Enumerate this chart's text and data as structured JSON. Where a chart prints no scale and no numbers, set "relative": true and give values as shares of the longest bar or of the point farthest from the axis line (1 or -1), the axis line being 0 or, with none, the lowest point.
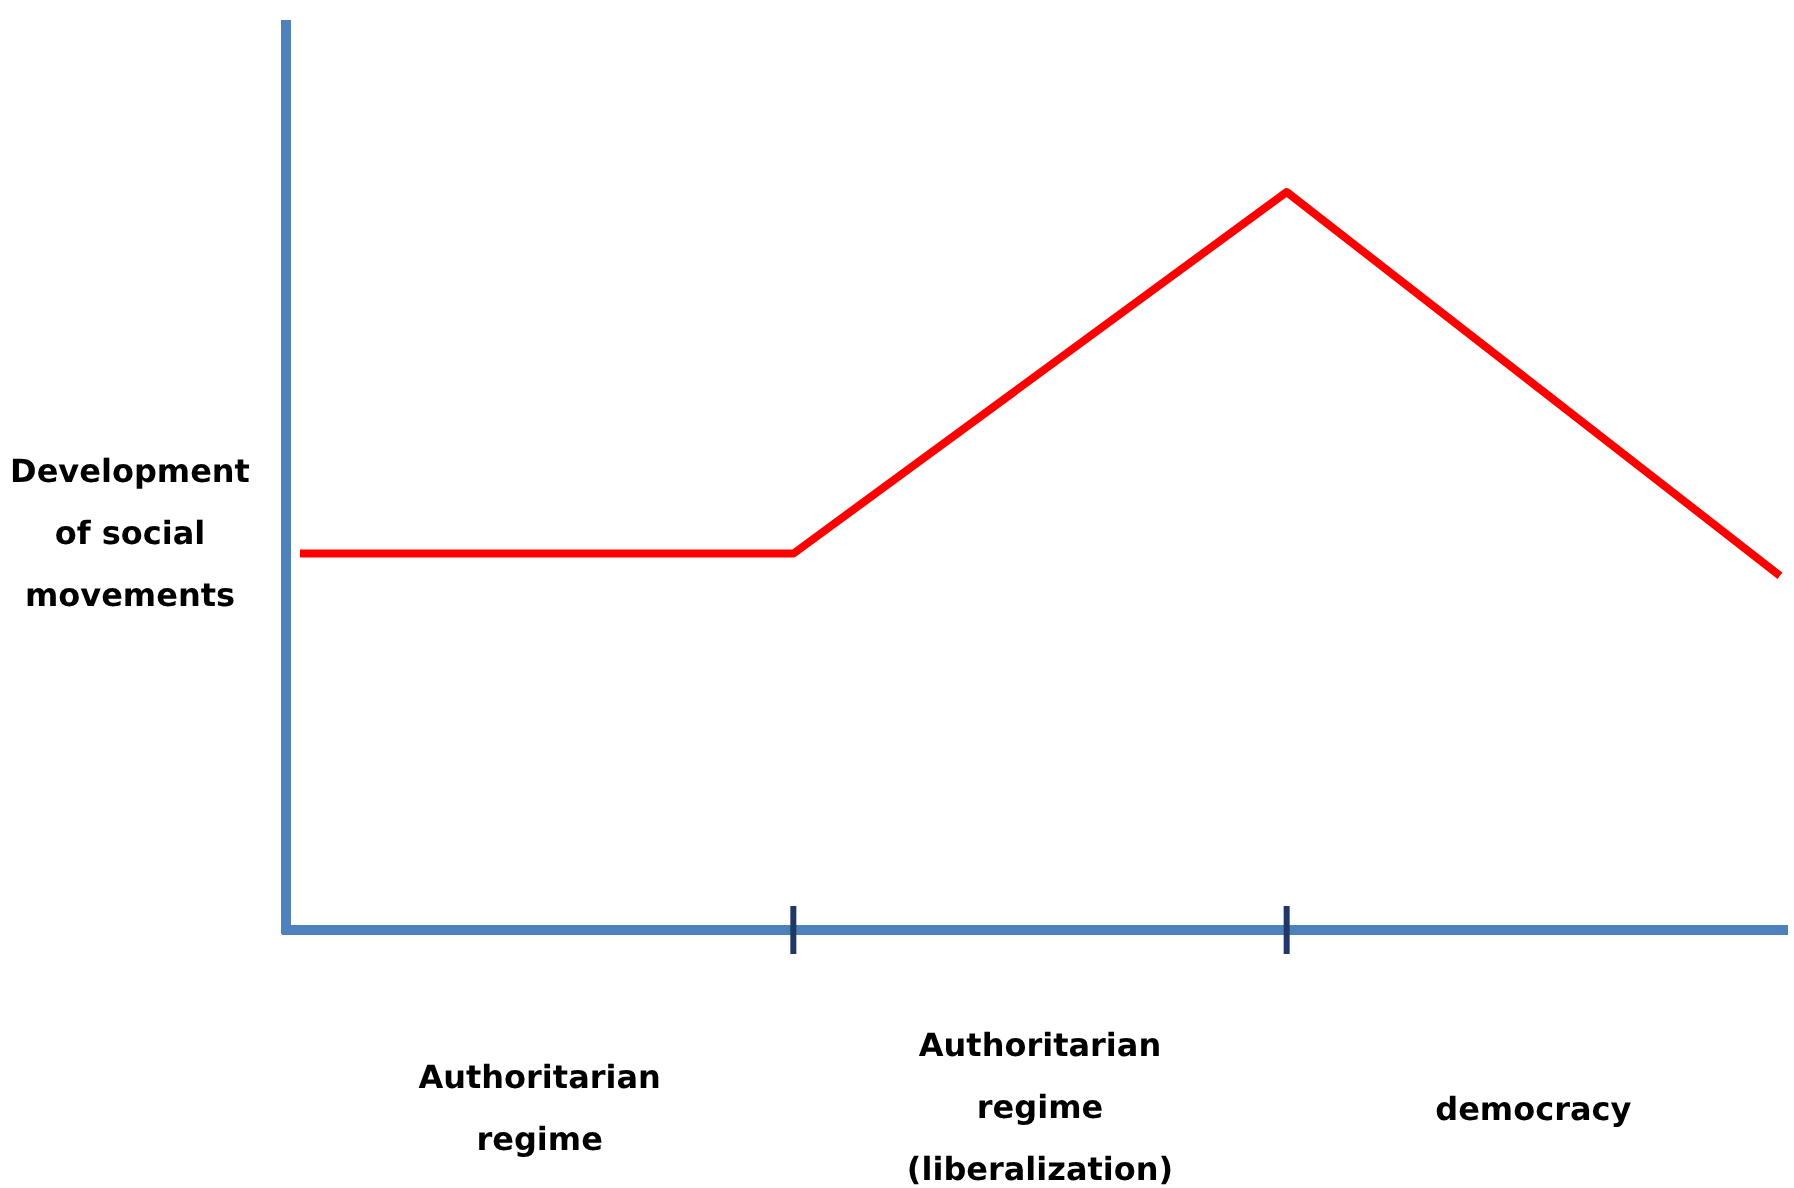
{
  "chart_data": {
    "type": "line",
    "relative": true,
    "ylabel": "Development of social movements",
    "categories": [
      null,
      null,
      null,
      null
    ],
    "series": [
      {
        "color": "#ff0000",
        "values": [
          0.51,
          0.51,
          1,
          0.48
        ]
      }
    ],
    "annotations": [
      "Authoritarian regime",
      "Authoritarian regime (liberalization)",
      "democracy"
    ],
    "marker": "none",
    "line_style": "solid"
  }
}
